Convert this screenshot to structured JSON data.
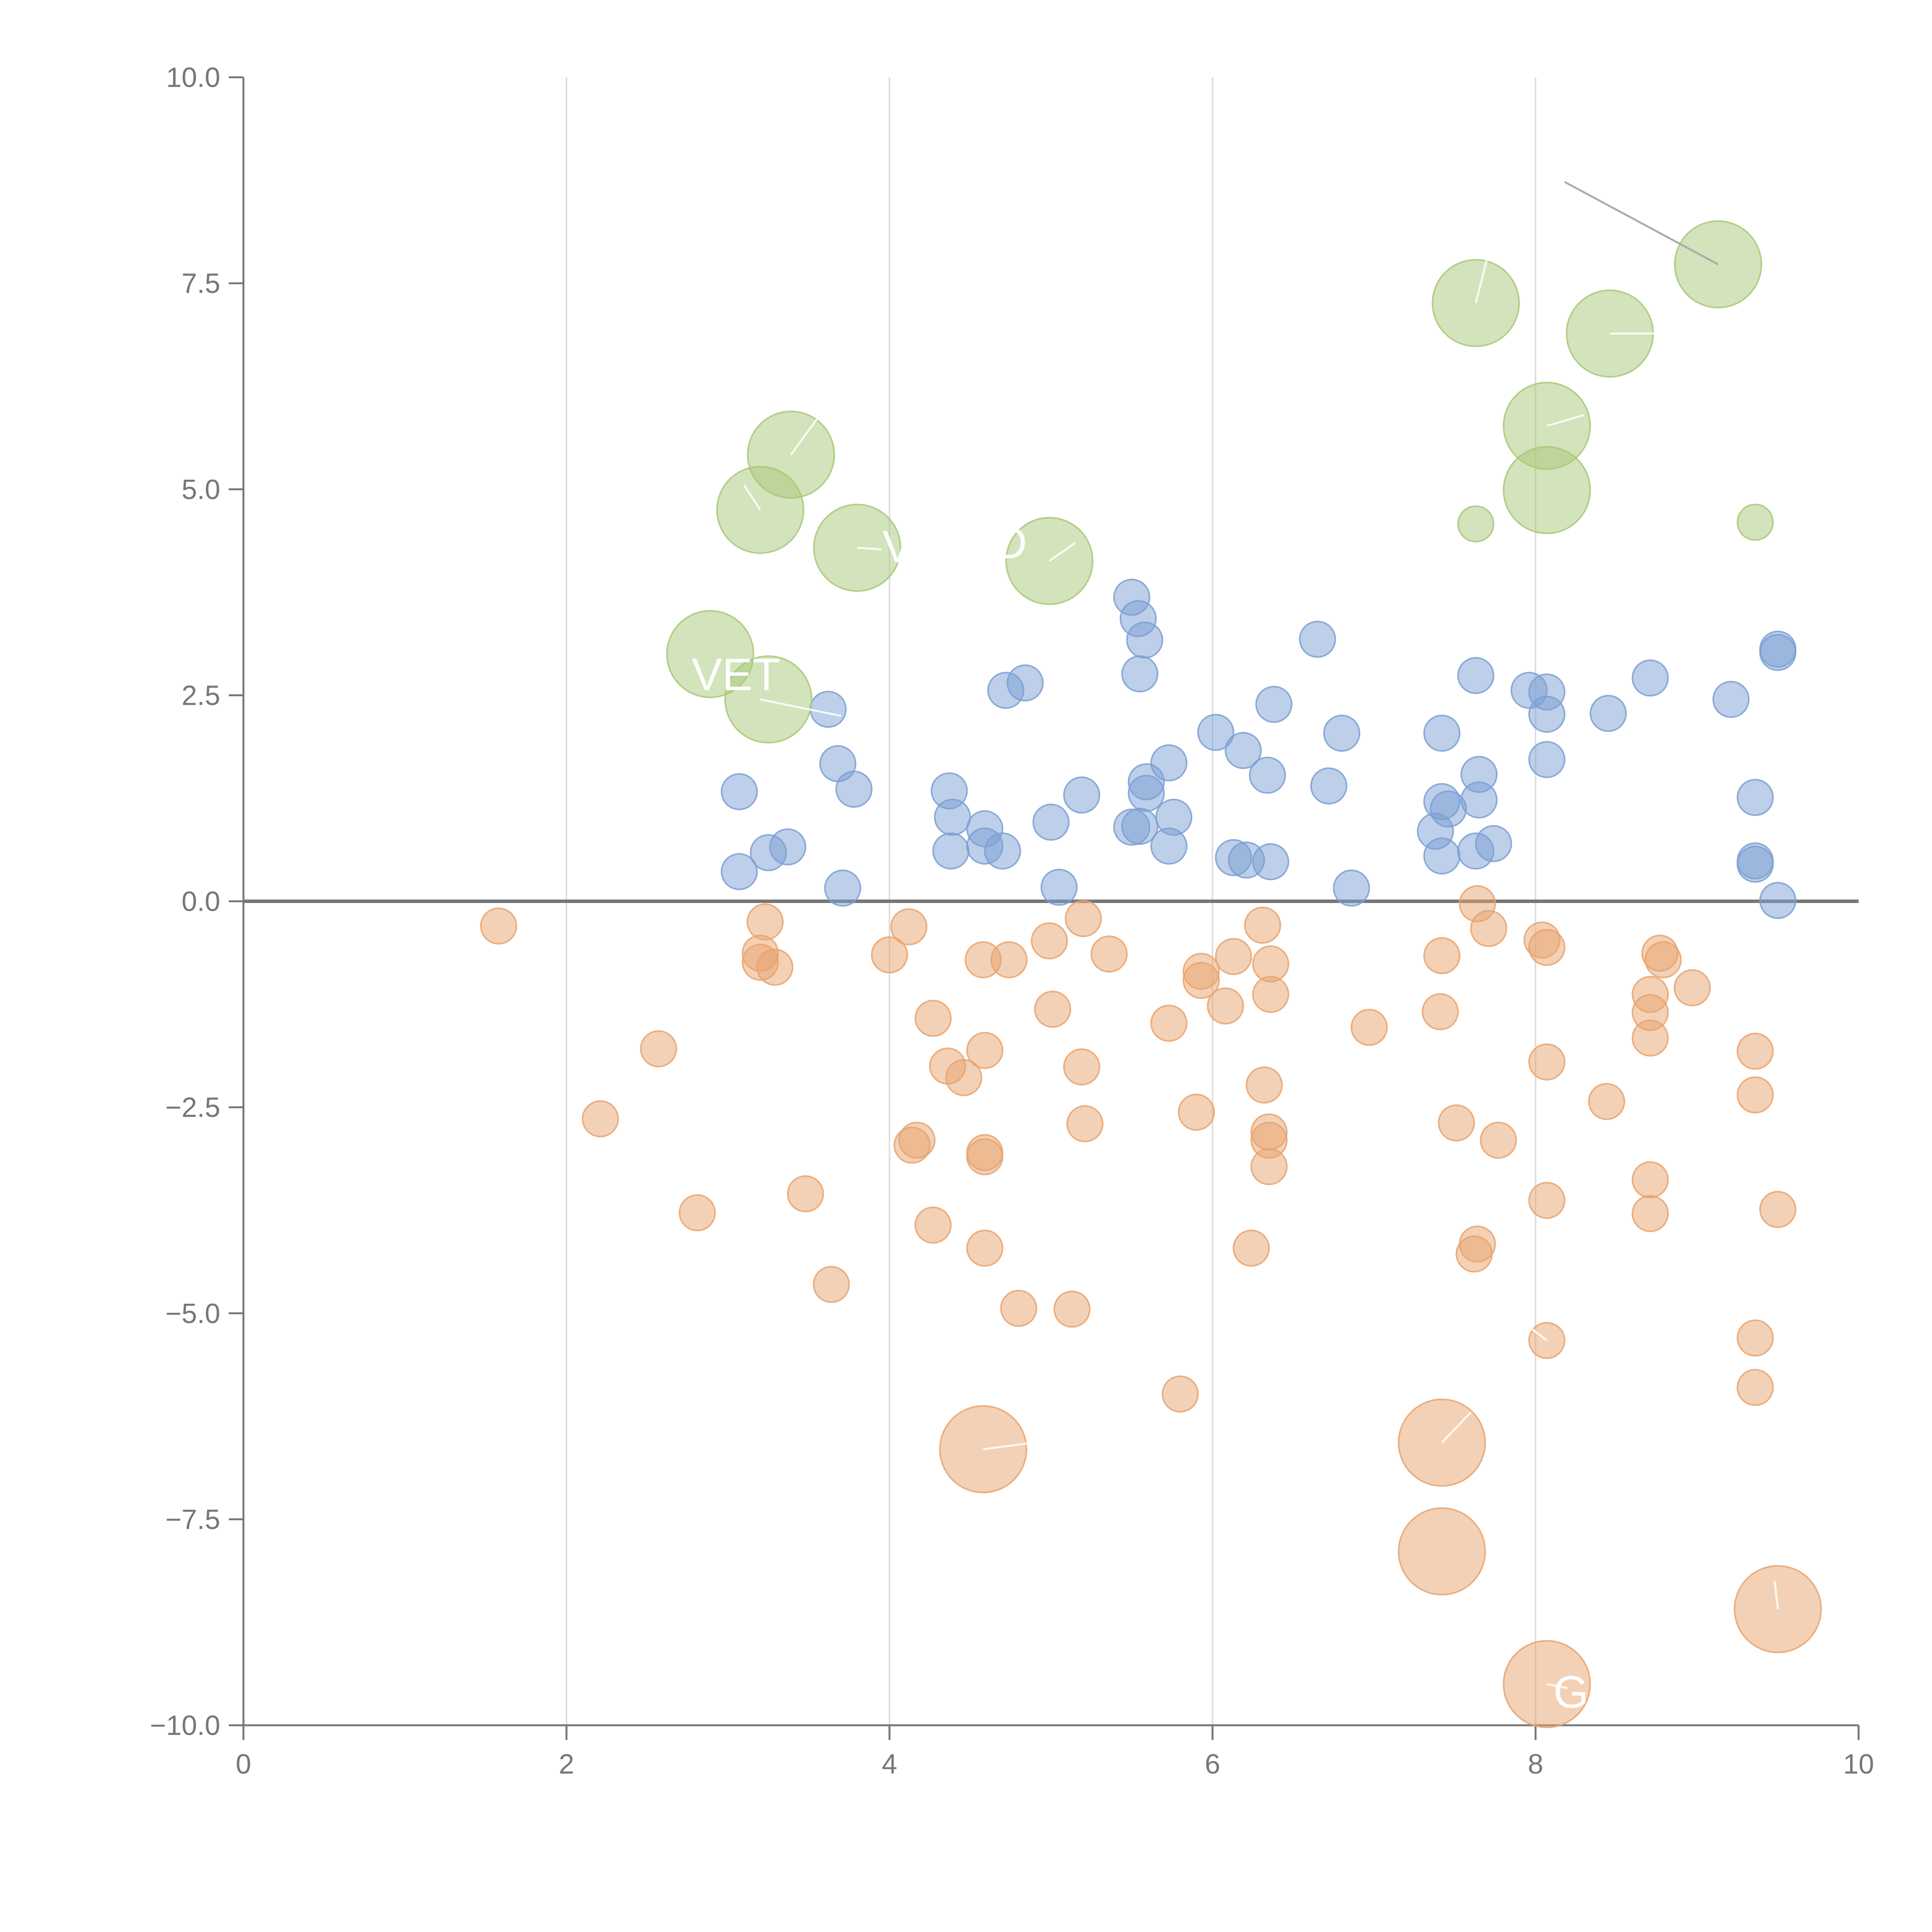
{
  "chart_data": {
    "type": "scatter",
    "title": "",
    "xlabel": "",
    "ylabel": "",
    "xlim": [
      0,
      10
    ],
    "ylim": [
      -10,
      10
    ],
    "grid": "vertical",
    "x_ticks": [
      0,
      2,
      4,
      6,
      8,
      10
    ],
    "x_tick_labels": [
      "0",
      "2",
      "4",
      "6",
      "8",
      "10"
    ],
    "y_ticks": [
      10,
      7.5,
      5,
      2.5,
      0,
      -2.5,
      -5,
      -7.5,
      -10
    ],
    "y_tick_labels": [
      "10.0",
      "7.5",
      "5.0",
      "2.5",
      "0.0",
      "−2.5",
      "−5.0",
      "−7.5",
      "−10.0"
    ],
    "colors": {
      "positive": "#7b9fd4",
      "negative": "#e8a36e",
      "highlight": "#a8c878",
      "axis": "#777777",
      "zero_line": "#777777",
      "grid": "#dddddd"
    },
    "series": [
      {
        "name": "positive",
        "color": "#7b9fd4",
        "size": "small",
        "points": [
          [
            3.07,
            1.33
          ],
          [
            3.07,
            0.36
          ],
          [
            3.25,
            0.59
          ],
          [
            3.37,
            0.66
          ],
          [
            3.62,
            2.33
          ],
          [
            3.68,
            1.67
          ],
          [
            3.71,
            0.16
          ],
          [
            3.78,
            1.36
          ],
          [
            4.37,
            1.34
          ],
          [
            4.39,
            1.02
          ],
          [
            4.38,
            0.61
          ],
          [
            4.59,
            0.88
          ],
          [
            4.59,
            0.67
          ],
          [
            4.7,
            0.61
          ],
          [
            4.72,
            2.56
          ],
          [
            4.84,
            2.65
          ],
          [
            5.0,
            0.96
          ],
          [
            5.05,
            0.17
          ],
          [
            5.19,
            1.29
          ],
          [
            5.5,
            3.69
          ],
          [
            5.54,
            3.43
          ],
          [
            5.58,
            3.17
          ],
          [
            5.55,
            2.76
          ],
          [
            5.59,
            1.45
          ],
          [
            5.59,
            1.31
          ],
          [
            5.5,
            0.9
          ],
          [
            5.55,
            0.91
          ],
          [
            5.73,
            1.68
          ],
          [
            5.76,
            1.02
          ],
          [
            5.73,
            0.67
          ],
          [
            6.02,
            2.05
          ],
          [
            6.19,
            1.83
          ],
          [
            6.38,
            2.39
          ],
          [
            6.34,
            1.53
          ],
          [
            6.13,
            0.53
          ],
          [
            6.21,
            0.5
          ],
          [
            6.36,
            0.48
          ],
          [
            6.65,
            3.18
          ],
          [
            6.72,
            1.4
          ],
          [
            6.8,
            2.04
          ],
          [
            6.86,
            0.16
          ],
          [
            7.42,
            2.04
          ],
          [
            7.42,
            1.21
          ],
          [
            7.46,
            1.12
          ],
          [
            7.38,
            0.85
          ],
          [
            7.42,
            0.55
          ],
          [
            7.63,
            2.74
          ],
          [
            7.65,
            1.54
          ],
          [
            7.65,
            1.23
          ],
          [
            7.63,
            0.61
          ],
          [
            7.74,
            0.7
          ],
          [
            7.96,
            2.56
          ],
          [
            8.07,
            2.54
          ],
          [
            8.07,
            2.27
          ],
          [
            8.07,
            1.72
          ],
          [
            8.45,
            2.28
          ],
          [
            8.71,
            2.71
          ],
          [
            9.21,
            2.45
          ],
          [
            9.36,
            1.26
          ],
          [
            9.36,
            0.49
          ],
          [
            9.36,
            0.45
          ],
          [
            9.5,
            3.06
          ],
          [
            9.5,
            3.02
          ],
          [
            9.5,
            0.01
          ]
        ]
      },
      {
        "name": "negative",
        "color": "#e8a36e",
        "size": "small",
        "points": [
          [
            1.58,
            -0.3
          ],
          [
            2.21,
            -2.64
          ],
          [
            2.57,
            -1.79
          ],
          [
            2.81,
            -3.78
          ],
          [
            3.23,
            -0.25
          ],
          [
            3.2,
            -0.63
          ],
          [
            3.2,
            -0.74
          ],
          [
            3.29,
            -0.8
          ],
          [
            3.48,
            -3.55
          ],
          [
            3.64,
            -4.65
          ],
          [
            4.0,
            -0.65
          ],
          [
            4.12,
            -0.31
          ],
          [
            4.14,
            -2.96
          ],
          [
            4.17,
            -2.9
          ],
          [
            4.27,
            -1.42
          ],
          [
            4.27,
            -3.93
          ],
          [
            4.36,
            -2.0
          ],
          [
            4.46,
            -2.14
          ],
          [
            4.58,
            -0.71
          ],
          [
            4.59,
            -1.81
          ],
          [
            4.59,
            -3.05
          ],
          [
            4.59,
            -3.1
          ],
          [
            4.59,
            -4.21
          ],
          [
            4.74,
            -0.71
          ],
          [
            4.8,
            -4.94
          ],
          [
            4.99,
            -0.48
          ],
          [
            5.01,
            -1.31
          ],
          [
            5.13,
            -4.95
          ],
          [
            5.19,
            -2.01
          ],
          [
            5.2,
            -0.21
          ],
          [
            5.21,
            -2.7
          ],
          [
            5.36,
            -0.64
          ],
          [
            5.73,
            -1.48
          ],
          [
            5.8,
            -5.98
          ],
          [
            5.9,
            -2.56
          ],
          [
            5.93,
            -0.96
          ],
          [
            5.93,
            -0.85
          ],
          [
            6.08,
            -1.27
          ],
          [
            6.13,
            -0.67
          ],
          [
            6.24,
            -4.21
          ],
          [
            6.31,
            -0.29
          ],
          [
            6.32,
            -2.23
          ],
          [
            6.35,
            -2.8
          ],
          [
            6.35,
            -2.9
          ],
          [
            6.35,
            -3.22
          ],
          [
            6.36,
            -0.76
          ],
          [
            6.36,
            -1.13
          ],
          [
            6.97,
            -1.53
          ],
          [
            7.41,
            -1.34
          ],
          [
            7.42,
            -0.66
          ],
          [
            7.51,
            -2.69
          ],
          [
            7.62,
            -4.28
          ],
          [
            7.64,
            -4.16
          ],
          [
            7.64,
            -0.03
          ],
          [
            7.71,
            -0.33
          ],
          [
            7.77,
            -2.9
          ],
          [
            8.04,
            -0.47
          ],
          [
            8.07,
            -0.56
          ],
          [
            8.07,
            -1.95
          ],
          [
            8.07,
            -3.63
          ],
          [
            8.07,
            -5.33
          ],
          [
            8.44,
            -2.43
          ],
          [
            8.71,
            -1.13
          ],
          [
            8.71,
            -1.35
          ],
          [
            8.71,
            -1.66
          ],
          [
            8.71,
            -3.38
          ],
          [
            8.71,
            -3.79
          ],
          [
            8.77,
            -0.63
          ],
          [
            8.79,
            -0.71
          ],
          [
            8.97,
            -1.05
          ],
          [
            9.36,
            -1.82
          ],
          [
            9.36,
            -2.35
          ],
          [
            9.36,
            -5.3
          ],
          [
            9.36,
            -5.9
          ],
          [
            9.5,
            -3.74
          ]
        ]
      },
      {
        "name": "highlighted-positive",
        "color": "#a8c878",
        "size": "large",
        "points": [
          [
            2.89,
            3.0
          ],
          [
            3.2,
            4.75
          ],
          [
            3.25,
            2.45
          ],
          [
            3.39,
            5.42
          ],
          [
            3.8,
            4.29
          ],
          [
            4.99,
            4.13
          ],
          [
            7.63,
            7.26
          ],
          [
            8.07,
            5.77
          ],
          [
            8.07,
            4.99
          ],
          [
            8.46,
            6.89
          ],
          [
            9.13,
            7.73
          ]
        ]
      },
      {
        "name": "highlighted-positive-small",
        "color": "#a8c878",
        "size": "small",
        "points": [
          [
            7.63,
            4.58
          ],
          [
            9.36,
            4.6
          ]
        ]
      },
      {
        "name": "highlighted-negative",
        "color": "#e8a36e",
        "size": "large",
        "points": [
          [
            4.58,
            -6.65
          ],
          [
            7.42,
            -6.57
          ],
          [
            7.42,
            -7.89
          ],
          [
            8.07,
            -9.5
          ],
          [
            9.5,
            -8.59
          ]
        ]
      }
    ],
    "annotations": [
      {
        "text": "VET",
        "x": 3.05,
        "y": 2.75,
        "ax": 3.2,
        "ay": 2.45,
        "tx": 3.7,
        "ty": 2.25
      },
      {
        "text": "V",
        "x": 4.05,
        "y": 4.3,
        "ax": 3.8,
        "ay": 4.29,
        "tx": 3.95,
        "ty": 4.27
      },
      {
        "text": "D",
        "x": 4.75,
        "y": 4.35,
        "ax": 4.99,
        "ay": 4.13,
        "tx": 5.15,
        "ty": 4.35
      },
      {
        "text": "G",
        "x": 8.22,
        "y": -9.6,
        "ax": 8.07,
        "ay": -9.5,
        "tx": 8.2,
        "ty": -9.55
      }
    ],
    "leader_lines": [
      {
        "x1": 3.39,
        "y1": 5.42,
        "x2": 3.55,
        "y2": 5.85
      },
      {
        "x1": 3.2,
        "y1": 4.75,
        "x2": 3.1,
        "y2": 5.05
      },
      {
        "x1": 7.63,
        "y1": 7.26,
        "x2": 7.7,
        "y2": 7.8
      },
      {
        "x1": 8.07,
        "y1": 5.77,
        "x2": 8.3,
        "y2": 5.9
      },
      {
        "x1": 8.46,
        "y1": 6.89,
        "x2": 8.78,
        "y2": 6.89
      },
      {
        "x1": 4.58,
        "y1": -6.65,
        "x2": 4.85,
        "y2": -6.58
      },
      {
        "x1": 7.42,
        "y1": -6.57,
        "x2": 7.6,
        "y2": -6.2
      },
      {
        "x1": 8.07,
        "y1": -5.33,
        "x2": 7.95,
        "y2": -5.15
      },
      {
        "x1": 9.5,
        "y1": -8.59,
        "x2": 9.48,
        "y2": -8.25
      }
    ],
    "gray_leader": {
      "x1": 9.13,
      "y1": 7.73,
      "x2": 8.18,
      "y2": 8.73
    }
  }
}
